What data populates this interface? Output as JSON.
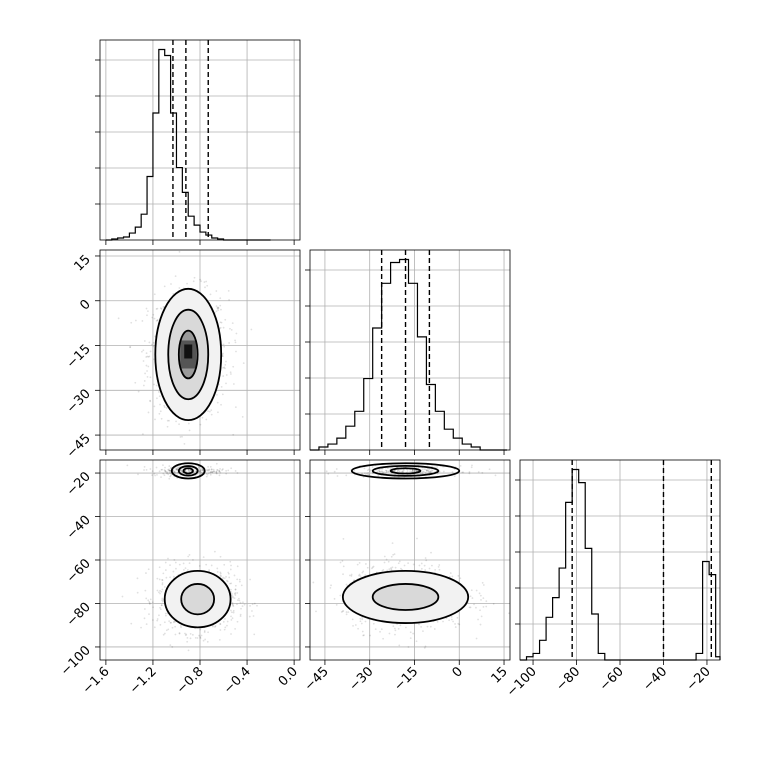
{
  "chart_data": {
    "type": "corner",
    "grid": true,
    "parameters": [
      {
        "index": 0,
        "range": [
          -1.65,
          0.05
        ],
        "ticks": [
          -1.6,
          -1.2,
          -0.8,
          -0.4,
          0.0
        ],
        "tick_labels": [
          "−1.6",
          "−1.2",
          "−0.8",
          "−0.4",
          "0.0"
        ],
        "quantiles": [
          -1.03,
          -0.92,
          -0.73
        ],
        "histogram": {
          "bins": [
            -1.6,
            -1.55,
            -1.5,
            -1.45,
            -1.4,
            -1.35,
            -1.3,
            -1.25,
            -1.2,
            -1.15,
            -1.1,
            -1.05,
            -1.0,
            -0.95,
            -0.9,
            -0.85,
            -0.8,
            -0.75,
            -0.7,
            -0.65,
            -0.6,
            -0.55,
            -0.5,
            -0.45,
            -0.4,
            -0.35,
            -0.3,
            -0.25,
            -0.2
          ],
          "counts": [
            0,
            1,
            2,
            3,
            7,
            13,
            26,
            64,
            128,
            192,
            186,
            128,
            73,
            48,
            24,
            15,
            8,
            5,
            2,
            1,
            0,
            0,
            0,
            0,
            0,
            0,
            0,
            0
          ]
        }
      },
      {
        "index": 1,
        "range": [
          -50,
          17
        ],
        "ticks": [
          -45,
          -30,
          -15,
          0,
          15
        ],
        "tick_labels": [
          "−45",
          "−30",
          "−15",
          "0",
          "15"
        ],
        "quantiles": [
          -26,
          -18,
          -10
        ],
        "histogram": {
          "bins": [
            -50,
            -47,
            -44,
            -41,
            -38,
            -35,
            -32,
            -29,
            -26,
            -23,
            -20,
            -17,
            -14,
            -11,
            -8,
            -5,
            -2,
            1,
            4,
            7,
            10,
            13,
            16
          ],
          "counts": [
            0,
            1,
            2,
            4,
            8,
            13,
            24,
            41,
            56,
            63,
            64,
            56,
            38,
            22,
            13,
            7,
            4,
            2,
            1,
            0,
            0,
            0
          ]
        }
      },
      {
        "index": 2,
        "range": [
          -106,
          -14
        ],
        "ticks": [
          -100,
          -80,
          -60,
          -40,
          -20
        ],
        "tick_labels": [
          "−100",
          "−80",
          "−60",
          "−40",
          "−20"
        ],
        "quantiles": [
          -82,
          -40,
          -18
        ],
        "histogram": {
          "bins": [
            -106,
            -103,
            -100,
            -97,
            -94,
            -91,
            -88,
            -85,
            -82,
            -79,
            -76,
            -73,
            -70,
            -67,
            -64,
            -61,
            -58,
            -55,
            -52,
            -49,
            -46,
            -43,
            -40,
            -37,
            -34,
            -31,
            -28,
            -25,
            -22,
            -19,
            -16,
            -14
          ],
          "counts": [
            0,
            1,
            2,
            6,
            13,
            19,
            28,
            48,
            58,
            54,
            34,
            14,
            2,
            0,
            0,
            0,
            0,
            0,
            0,
            0,
            0,
            0,
            0,
            0,
            0,
            0,
            0,
            2,
            30,
            26,
            1
          ]
        }
      }
    ],
    "contours": [
      {
        "row": 1,
        "col": 0,
        "center": [
          -0.9,
          -18
        ],
        "levels": [
          {
            "rx": 0.28,
            "ry": 22
          },
          {
            "rx": 0.17,
            "ry": 15
          },
          {
            "rx": 0.08,
            "ry": 8
          }
        ],
        "scatter_spread": [
          0.17,
          10.5
        ]
      },
      {
        "row": 2,
        "col": 0,
        "center": [
          -0.82,
          -78
        ],
        "levels": [
          {
            "rx": 0.28,
            "ry": 13
          },
          {
            "rx": 0.14,
            "ry": 7
          }
        ],
        "secondary": {
          "center": [
            -0.9,
            -19
          ],
          "levels": [
            {
              "rx": 0.14,
              "ry": 3.5
            },
            {
              "rx": 0.08,
              "ry": 2.2
            },
            {
              "rx": 0.04,
              "ry": 1.2
            }
          ]
        },
        "scatter_spread": [
          0.17,
          7.5
        ]
      },
      {
        "row": 2,
        "col": 1,
        "center": [
          -18,
          -77
        ],
        "levels": [
          {
            "rx": 21,
            "ry": 12
          },
          {
            "rx": 11,
            "ry": 6
          }
        ],
        "secondary": {
          "center": [
            -18,
            -19
          ],
          "levels": [
            {
              "rx": 18,
              "ry": 3.5
            },
            {
              "rx": 11,
              "ry": 2.3
            },
            {
              "rx": 5,
              "ry": 1.2
            }
          ]
        },
        "scatter_spread": [
          10.5,
          7.5
        ]
      }
    ]
  }
}
